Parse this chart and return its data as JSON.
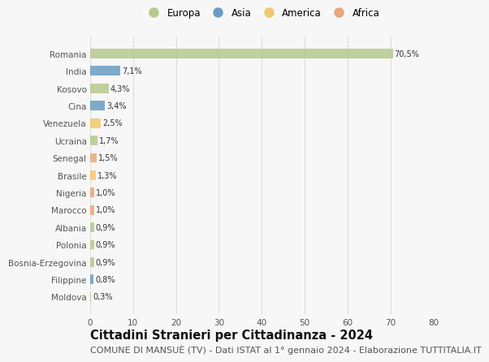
{
  "categories": [
    "Romania",
    "India",
    "Kosovo",
    "Cina",
    "Venezuela",
    "Ucraina",
    "Senegal",
    "Brasile",
    "Nigeria",
    "Marocco",
    "Albania",
    "Polonia",
    "Bosnia-Erzegovina",
    "Filippine",
    "Moldova"
  ],
  "values": [
    70.5,
    7.1,
    4.3,
    3.4,
    2.5,
    1.7,
    1.5,
    1.3,
    1.0,
    1.0,
    0.9,
    0.9,
    0.9,
    0.8,
    0.3
  ],
  "labels": [
    "70,5%",
    "7,1%",
    "4,3%",
    "3,4%",
    "2,5%",
    "1,7%",
    "1,5%",
    "1,3%",
    "1,0%",
    "1,0%",
    "0,9%",
    "0,9%",
    "0,9%",
    "0,8%",
    "0,3%"
  ],
  "continents": [
    "Europa",
    "Asia",
    "Europa",
    "Asia",
    "America",
    "Europa",
    "Africa",
    "America",
    "Africa",
    "Africa",
    "Europa",
    "Europa",
    "Europa",
    "Asia",
    "Europa"
  ],
  "continent_colors": {
    "Europa": "#b5c98e",
    "Asia": "#6b9dc2",
    "America": "#f0c96b",
    "Africa": "#e8a87c"
  },
  "legend_order": [
    "Europa",
    "Asia",
    "America",
    "Africa"
  ],
  "title": "Cittadini Stranieri per Cittadinanza - 2024",
  "subtitle": "COMUNE DI MANSUÈ (TV) - Dati ISTAT al 1° gennaio 2024 - Elaborazione TUTTITALIA.IT",
  "xlim": [
    0,
    80
  ],
  "xticks": [
    0,
    10,
    20,
    30,
    40,
    50,
    60,
    70,
    80
  ],
  "background_color": "#f7f7f7",
  "grid_color": "#dddddd",
  "title_fontsize": 10.5,
  "subtitle_fontsize": 8,
  "bar_height": 0.55
}
